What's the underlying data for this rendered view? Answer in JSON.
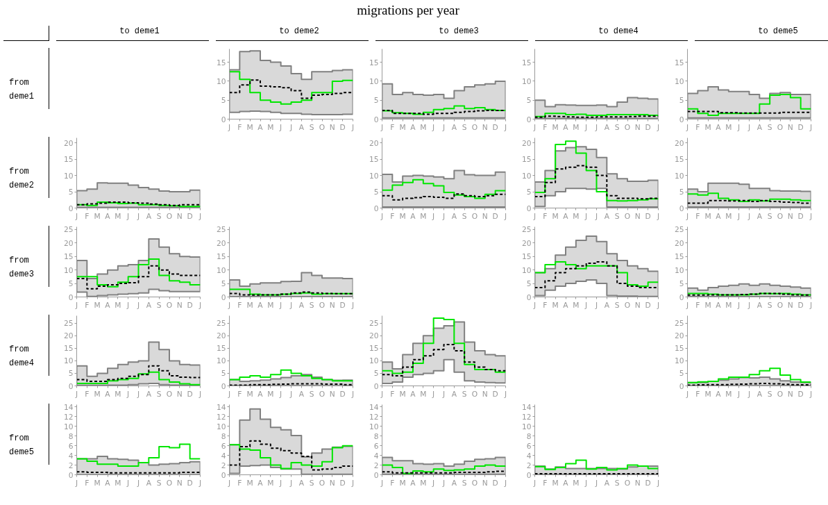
{
  "chart_data": [
    {
      "type": "other",
      "title": "migrations per year",
      "annotations": [
        "to deme1",
        "to deme2",
        "to deme3",
        "to deme4",
        "to deme5",
        "from deme1",
        "from deme2",
        "from deme3",
        "from deme4",
        "from deme5"
      ]
    },
    {
      "type": "step",
      "categories": [
        "J",
        "F",
        "M",
        "A",
        "M",
        "J",
        "J",
        "A",
        "S",
        "O",
        "N",
        "D",
        "J"
      ],
      "ylim": [
        0,
        18.5
      ],
      "yticks": [
        0,
        5,
        10,
        15
      ],
      "series": [
        {
          "color": "#00e600",
          "values": [
            12.5,
            10.5,
            7,
            5,
            4.5,
            4,
            4.5,
            5,
            7,
            7,
            10,
            10.2,
            10.2
          ]
        },
        {
          "color": "#000000",
          "line_style": "dashed",
          "values": [
            7,
            9,
            10.3,
            8.7,
            8.5,
            8.3,
            7.5,
            5.5,
            6.3,
            6.5,
            6.8,
            7,
            7
          ],
          "lower": [
            1.8,
            2,
            2.1,
            2,
            1.8,
            1.5,
            1.5,
            1.3,
            1.2,
            1.2,
            1.2,
            1.3,
            1.3
          ],
          "upper": [
            13,
            17.8,
            18,
            15.5,
            15,
            14,
            12,
            10.5,
            12.5,
            12.5,
            12.8,
            13,
            13
          ]
        }
      ]
    },
    {
      "type": "step",
      "categories": [
        "J",
        "F",
        "M",
        "A",
        "M",
        "J",
        "J",
        "A",
        "S",
        "O",
        "N",
        "D",
        "J"
      ],
      "ylim": [
        0,
        18.5
      ],
      "yticks": [
        0,
        5,
        10,
        15
      ],
      "series": [
        {
          "color": "#00e600",
          "values": [
            2.2,
            1.7,
            1.5,
            1.3,
            1.8,
            2.5,
            2.8,
            3.5,
            2.8,
            3,
            2.5,
            2.3,
            2.3
          ]
        },
        {
          "color": "#000000",
          "line_style": "dashed",
          "values": [
            2.3,
            1.5,
            1.5,
            1.5,
            1.3,
            1.5,
            1.5,
            1.8,
            2,
            2.2,
            2.3,
            2.3,
            2.3
          ],
          "lower": [
            0.3,
            0.3,
            0.3,
            0.3,
            0.3,
            0.3,
            0.3,
            0.3,
            0.3,
            0.3,
            0.3,
            0.3,
            0.3
          ],
          "upper": [
            9.3,
            6.5,
            7,
            6.5,
            6.3,
            6.5,
            5.5,
            7.5,
            8.5,
            9,
            9.3,
            10,
            10
          ]
        }
      ]
    },
    {
      "type": "step",
      "categories": [
        "J",
        "F",
        "M",
        "A",
        "M",
        "J",
        "J",
        "A",
        "S",
        "O",
        "N",
        "D",
        "J"
      ],
      "ylim": [
        0,
        18.5
      ],
      "yticks": [
        0,
        5,
        10,
        15
      ],
      "series": [
        {
          "color": "#00e600",
          "values": [
            0.7,
            1.5,
            1.5,
            1.2,
            1.3,
            1,
            1,
            1.2,
            1.2,
            1.2,
            1.2,
            1,
            1
          ]
        },
        {
          "color": "#000000",
          "line_style": "dashed",
          "values": [
            0.5,
            0.8,
            0.7,
            0.6,
            0.5,
            0.5,
            0.6,
            0.6,
            0.6,
            0.7,
            0.8,
            0.8,
            0.8
          ],
          "lower": [
            0.2,
            0.2,
            0.2,
            0.2,
            0.2,
            0.2,
            0.2,
            0.2,
            0.2,
            0.2,
            0.2,
            0.2,
            0.2
          ],
          "upper": [
            5,
            3.3,
            3.8,
            3.7,
            3.6,
            3.6,
            3.7,
            3.3,
            4.5,
            5.7,
            5.5,
            5.3,
            5.3
          ]
        }
      ]
    },
    {
      "type": "step",
      "categories": [
        "J",
        "F",
        "M",
        "A",
        "M",
        "J",
        "J",
        "A",
        "S",
        "O",
        "N",
        "D",
        "J"
      ],
      "ylim": [
        0,
        18.5
      ],
      "yticks": [
        0,
        5,
        10,
        15
      ],
      "series": [
        {
          "color": "#00e600",
          "values": [
            2.7,
            1.5,
            1,
            1.5,
            1.5,
            1.5,
            1.5,
            4,
            6.3,
            6.5,
            5.7,
            2.7,
            2.7
          ]
        },
        {
          "color": "#000000",
          "line_style": "dashed",
          "values": [
            2,
            2,
            2,
            1.7,
            1.7,
            1.6,
            1.6,
            1.6,
            1.6,
            1.8,
            1.8,
            1.8,
            1.8
          ],
          "lower": [
            0.3,
            0.3,
            0.3,
            0.3,
            0.3,
            0.3,
            0.3,
            0.3,
            0.3,
            0.3,
            0.3,
            0.3,
            0.3
          ],
          "upper": [
            6.8,
            7.5,
            8.5,
            7.7,
            7.3,
            7.3,
            6.5,
            5.5,
            6.8,
            7,
            6.5,
            6.5,
            6.5
          ]
        }
      ]
    },
    {
      "type": "step",
      "categories": [
        "J",
        "F",
        "M",
        "A",
        "M",
        "J",
        "J",
        "A",
        "S",
        "O",
        "N",
        "D",
        "J"
      ],
      "ylim": [
        0,
        21.5
      ],
      "yticks": [
        0,
        5,
        10,
        15,
        20
      ],
      "series": [
        {
          "color": "#00e600",
          "values": [
            1,
            0.8,
            1.8,
            1.6,
            1.4,
            1.5,
            1,
            1,
            0.8,
            0.7,
            0.5,
            0.5,
            0.5
          ]
        },
        {
          "color": "#000000",
          "line_style": "dashed",
          "values": [
            1,
            1.3,
            1.5,
            1.8,
            1.8,
            1.6,
            1.5,
            1.2,
            1,
            0.8,
            1,
            1,
            1
          ],
          "lower": [
            0.2,
            0.2,
            0.2,
            0.2,
            0.2,
            0.2,
            0.2,
            0.2,
            0.2,
            0.2,
            0.2,
            0.2,
            0.2
          ],
          "upper": [
            5.3,
            5.8,
            7.7,
            7.6,
            7.6,
            7,
            6.3,
            5.8,
            5.2,
            5,
            5,
            5.5,
            5.5
          ]
        }
      ]
    },
    {
      "type": "step",
      "categories": [
        "J",
        "F",
        "M",
        "A",
        "M",
        "J",
        "J",
        "A",
        "S",
        "O",
        "N",
        "D",
        "J"
      ],
      "ylim": [
        0,
        21.5
      ],
      "yticks": [
        0,
        5,
        10,
        15,
        20
      ],
      "series": [
        {
          "color": "#00e600",
          "values": [
            5.5,
            7,
            7.8,
            8.7,
            7.5,
            6.8,
            4.8,
            4,
            3.5,
            3,
            4.2,
            5.3,
            5.3
          ]
        },
        {
          "color": "#000000",
          "line_style": "dashed",
          "values": [
            3.8,
            2.5,
            3,
            3.2,
            3.5,
            3.3,
            3,
            4.3,
            3.8,
            3.5,
            3.8,
            4.2,
            4.2
          ],
          "lower": [
            0.3,
            0.3,
            0.3,
            0.3,
            0.3,
            0.3,
            0.3,
            0.3,
            0.3,
            0.3,
            0.3,
            0.3,
            0.3
          ],
          "upper": [
            10.3,
            8,
            9.8,
            10,
            9.8,
            9.5,
            9,
            11.5,
            10.2,
            10,
            10,
            11,
            11
          ]
        }
      ]
    },
    {
      "type": "step",
      "categories": [
        "J",
        "F",
        "M",
        "A",
        "M",
        "J",
        "J",
        "A",
        "S",
        "O",
        "N",
        "D",
        "J"
      ],
      "ylim": [
        0,
        21.5
      ],
      "yticks": [
        0,
        5,
        10,
        15,
        20
      ],
      "series": [
        {
          "color": "#00e600",
          "values": [
            4.8,
            9,
            19.5,
            20.5,
            16.8,
            11.5,
            5,
            2.3,
            2.2,
            2.3,
            2.5,
            2.8,
            2.8
          ]
        },
        {
          "color": "#000000",
          "line_style": "dashed",
          "values": [
            3.5,
            7.8,
            12,
            12.5,
            13,
            12.5,
            10,
            3.8,
            3,
            3,
            2.8,
            3,
            3
          ],
          "lower": [
            0.5,
            3.8,
            5,
            6,
            6,
            5.8,
            6,
            0.3,
            0.3,
            0.3,
            0.3,
            0.3,
            0.3
          ],
          "upper": [
            8,
            11.5,
            17.5,
            18.5,
            18.8,
            18,
            15.5,
            10.5,
            9,
            8.2,
            8.2,
            8.5,
            8.5
          ]
        }
      ]
    },
    {
      "type": "step",
      "categories": [
        "J",
        "F",
        "M",
        "A",
        "M",
        "J",
        "J",
        "A",
        "S",
        "O",
        "N",
        "D",
        "J"
      ],
      "ylim": [
        0,
        21.5
      ],
      "yticks": [
        0,
        5,
        10,
        15,
        20
      ],
      "series": [
        {
          "color": "#00e600",
          "values": [
            4.3,
            4,
            4.5,
            3,
            2.5,
            2,
            2.5,
            2.2,
            2.7,
            2.7,
            2.5,
            2.3,
            2.3
          ]
        },
        {
          "color": "#000000",
          "line_style": "dashed",
          "values": [
            1.5,
            1.5,
            2.3,
            2.3,
            2.2,
            2.3,
            2,
            2.3,
            2,
            1.8,
            1.7,
            1.5,
            1.5
          ],
          "lower": [
            0.3,
            0.3,
            0.3,
            0.3,
            0.3,
            0.3,
            0.3,
            0.3,
            0.3,
            0.3,
            0.3,
            0.3,
            0.3
          ],
          "upper": [
            5.8,
            5,
            7.6,
            7.6,
            7.6,
            7.3,
            6,
            6,
            5.3,
            5.2,
            5.2,
            5.1,
            5.1
          ]
        }
      ]
    },
    {
      "type": "step",
      "categories": [
        "J",
        "F",
        "M",
        "A",
        "M",
        "J",
        "J",
        "A",
        "S",
        "O",
        "N",
        "D",
        "J"
      ],
      "ylim": [
        0,
        26
      ],
      "yticks": [
        0,
        5,
        10,
        15,
        20,
        25
      ],
      "series": [
        {
          "color": "#00e600",
          "values": [
            7.5,
            7.5,
            4.5,
            3.8,
            5.5,
            7.5,
            12,
            14,
            8,
            6,
            5.5,
            4.5,
            4.5
          ]
        },
        {
          "color": "#000000",
          "line_style": "dashed",
          "values": [
            6.8,
            3,
            4,
            4.5,
            5,
            5.3,
            7.5,
            11.5,
            10,
            8.5,
            8,
            8,
            8
          ],
          "lower": [
            1.8,
            0.2,
            0.5,
            0.8,
            1,
            1.2,
            1.5,
            2.8,
            2.3,
            2,
            2,
            2,
            2
          ],
          "upper": [
            13.5,
            6.8,
            8.5,
            10,
            11.5,
            12,
            13.5,
            21.5,
            18.5,
            16,
            15,
            14.8,
            14.8
          ]
        }
      ]
    },
    {
      "type": "step",
      "categories": [
        "J",
        "F",
        "M",
        "A",
        "M",
        "J",
        "J",
        "A",
        "S",
        "O",
        "N",
        "D",
        "J"
      ],
      "ylim": [
        0,
        26
      ],
      "yticks": [
        0,
        5,
        10,
        15,
        20,
        25
      ],
      "series": [
        {
          "color": "#00e600",
          "values": [
            2.8,
            2.8,
            1,
            0.8,
            0.8,
            1,
            1.3,
            1.5,
            1,
            1.2,
            1.2,
            1.2,
            1.2
          ]
        },
        {
          "color": "#000000",
          "line_style": "dashed",
          "values": [
            1.3,
            0.8,
            0.7,
            0.8,
            0.8,
            1,
            1.5,
            1.8,
            1.5,
            1.3,
            1.2,
            1.2,
            1.2
          ],
          "lower": [
            0.1,
            0.1,
            0.1,
            0.1,
            0.1,
            0.1,
            0.1,
            0.1,
            0.1,
            0.1,
            0.1,
            0.1,
            0.1
          ],
          "upper": [
            6.3,
            4,
            4.8,
            5.2,
            5.2,
            5.7,
            5.8,
            9,
            8,
            7,
            7,
            6.8,
            6.8
          ]
        }
      ]
    },
    {
      "type": "step",
      "categories": [
        "J",
        "F",
        "M",
        "A",
        "M",
        "J",
        "J",
        "A",
        "S",
        "O",
        "N",
        "D",
        "J"
      ],
      "ylim": [
        0,
        26
      ],
      "yticks": [
        0,
        5,
        10,
        15,
        20,
        25
      ],
      "series": [
        {
          "color": "#00e600",
          "values": [
            9,
            12,
            13,
            12,
            10.5,
            11.5,
            11.5,
            11.5,
            9,
            4.5,
            4,
            5.5,
            5.5
          ]
        },
        {
          "color": "#000000",
          "line_style": "dashed",
          "values": [
            3.5,
            6,
            9,
            10.5,
            11.5,
            12.5,
            13,
            11.5,
            5,
            4,
            3.5,
            3.5,
            3.5
          ],
          "lower": [
            0.5,
            2.5,
            4,
            5,
            5.8,
            6.3,
            5,
            0.5,
            0.3,
            0.3,
            0.2,
            0.2,
            0.2
          ],
          "upper": [
            9,
            10.5,
            15.5,
            18.5,
            21,
            22.5,
            20.5,
            16,
            13.5,
            11.5,
            10.5,
            9.5,
            9.5
          ]
        }
      ]
    },
    {
      "type": "step",
      "categories": [
        "J",
        "F",
        "M",
        "A",
        "M",
        "J",
        "J",
        "A",
        "S",
        "O",
        "N",
        "D",
        "J"
      ],
      "ylim": [
        0,
        26
      ],
      "yticks": [
        0,
        5,
        10,
        15,
        20,
        25
      ],
      "series": [
        {
          "color": "#00e600",
          "values": [
            1.3,
            1.3,
            1,
            0.8,
            0.8,
            0.8,
            1,
            1.3,
            1.2,
            1.3,
            1,
            0.8,
            0.8
          ]
        },
        {
          "color": "#000000",
          "line_style": "dashed",
          "values": [
            0.7,
            0.7,
            0.8,
            0.8,
            0.8,
            0.9,
            1,
            1.3,
            1.3,
            1,
            0.8,
            0.7,
            0.7
          ],
          "lower": [
            0.1,
            0.1,
            0.1,
            0.1,
            0.1,
            0.1,
            0.1,
            0.1,
            0.1,
            0.1,
            0.1,
            0.1,
            0.1
          ],
          "upper": [
            3.3,
            2.5,
            3.5,
            4,
            4.3,
            4.8,
            4.3,
            4.8,
            4.3,
            4,
            3.7,
            3.3,
            3.3
          ]
        }
      ]
    },
    {
      "type": "step",
      "categories": [
        "J",
        "F",
        "M",
        "A",
        "M",
        "J",
        "J",
        "A",
        "S",
        "O",
        "N",
        "D",
        "J"
      ],
      "ylim": [
        0,
        28
      ],
      "yticks": [
        0,
        5,
        10,
        15,
        20,
        25
      ],
      "series": [
        {
          "color": "#00e600",
          "values": [
            1,
            1,
            1,
            2,
            2.5,
            3,
            4.8,
            5.5,
            2.5,
            1.5,
            0.8,
            0.5,
            0.5
          ]
        },
        {
          "color": "#000000",
          "line_style": "dashed",
          "values": [
            2.5,
            1.8,
            1.8,
            2.5,
            3,
            3.8,
            4.5,
            8,
            6,
            4,
            3.5,
            3.3,
            3.3
          ],
          "lower": [
            0.2,
            0.2,
            0.2,
            0.3,
            0.3,
            0.5,
            0.8,
            1,
            0.5,
            0.3,
            0.3,
            0.3,
            0.3
          ],
          "upper": [
            8,
            3.8,
            5,
            7,
            8.5,
            9.5,
            10,
            17.5,
            14.5,
            10,
            8.5,
            8.3,
            8.3
          ]
        }
      ]
    },
    {
      "type": "step",
      "categories": [
        "J",
        "F",
        "M",
        "A",
        "M",
        "J",
        "J",
        "A",
        "S",
        "O",
        "N",
        "D",
        "J"
      ],
      "ylim": [
        0,
        28
      ],
      "yticks": [
        0,
        5,
        10,
        15,
        20,
        25
      ],
      "series": [
        {
          "color": "#00e600",
          "values": [
            2.5,
            3.5,
            4,
            3.5,
            4.5,
            6.3,
            5,
            4,
            3,
            2.5,
            2,
            2,
            2
          ]
        },
        {
          "color": "#000000",
          "line_style": "dashed",
          "values": [
            0.3,
            0.3,
            0.5,
            0.5,
            0.6,
            0.7,
            0.8,
            0.8,
            0.8,
            0.7,
            0.7,
            0.5,
            0.5
          ],
          "lower": [
            0.1,
            0.1,
            0.1,
            0.1,
            0.1,
            0.1,
            0.1,
            0.1,
            0.1,
            0.1,
            0.1,
            0.1,
            0.1
          ],
          "upper": [
            2.5,
            1.8,
            2,
            2.3,
            2.8,
            3.3,
            4,
            4.5,
            3.5,
            2.5,
            2.2,
            2.3,
            2.3
          ]
        }
      ]
    },
    {
      "type": "step",
      "categories": [
        "J",
        "F",
        "M",
        "A",
        "M",
        "J",
        "J",
        "A",
        "S",
        "O",
        "N",
        "D",
        "J"
      ],
      "ylim": [
        0,
        28
      ],
      "yticks": [
        0,
        5,
        10,
        15,
        20,
        25
      ],
      "series": [
        {
          "color": "#00e600",
          "values": [
            6,
            5,
            5.5,
            9,
            17,
            27,
            26.5,
            17,
            8.5,
            6.5,
            6.5,
            5.5,
            5.5
          ]
        },
        {
          "color": "#000000",
          "line_style": "dashed",
          "values": [
            4.5,
            4,
            7.5,
            10.5,
            12,
            14.5,
            16.5,
            14,
            9.5,
            7.5,
            6.5,
            6,
            6
          ],
          "lower": [
            1,
            1.5,
            3.5,
            4.5,
            5,
            6,
            10.5,
            5.5,
            2,
            1.5,
            1.3,
            1.2,
            1.2
          ],
          "upper": [
            9.5,
            6.8,
            12.5,
            17,
            20,
            23,
            24,
            25.5,
            17.5,
            14,
            12.5,
            12,
            12
          ]
        }
      ]
    },
    {
      "type": "step",
      "categories": [
        "J",
        "F",
        "M",
        "A",
        "M",
        "J",
        "J",
        "A",
        "S",
        "O",
        "N",
        "D",
        "J"
      ],
      "ylim": [
        0,
        28
      ],
      "yticks": [
        0,
        5,
        10,
        15,
        20,
        25
      ],
      "series": [
        {
          "color": "#00e600",
          "values": [
            1.3,
            1.6,
            1.8,
            2.8,
            3.5,
            3.5,
            4.5,
            6,
            7,
            4.3,
            2.5,
            1.5,
            1.5
          ]
        },
        {
          "color": "#000000",
          "line_style": "dashed",
          "values": [
            0.3,
            0.4,
            0.5,
            0.5,
            0.6,
            0.7,
            0.8,
            1,
            0.8,
            0.6,
            0.5,
            0.4,
            0.4
          ],
          "lower": [
            0.1,
            0.1,
            0.1,
            0.1,
            0.1,
            0.1,
            0.1,
            0.1,
            0.1,
            0.1,
            0.1,
            0.1,
            0.1
          ],
          "upper": [
            1.3,
            1.3,
            1.8,
            2.3,
            2.8,
            3.3,
            3.2,
            3.5,
            2.8,
            2,
            1.5,
            1.3,
            1.3
          ]
        }
      ]
    },
    {
      "type": "step",
      "categories": [
        "J",
        "F",
        "M",
        "A",
        "M",
        "J",
        "J",
        "A",
        "S",
        "O",
        "N",
        "D",
        "J"
      ],
      "ylim": [
        0,
        14.5
      ],
      "yticks": [
        0,
        2,
        4,
        6,
        8,
        10,
        12,
        14
      ],
      "series": [
        {
          "color": "#00e600",
          "values": [
            3.3,
            2.8,
            2.2,
            2.2,
            1.8,
            1.8,
            2.5,
            3.5,
            5.8,
            5.6,
            6.3,
            3.3,
            3.3
          ]
        },
        {
          "color": "#000000",
          "line_style": "dashed",
          "values": [
            0.6,
            0.5,
            0.5,
            0.4,
            0.4,
            0.4,
            0.4,
            0.4,
            0.4,
            0.4,
            0.5,
            0.5,
            0.5
          ],
          "lower": [
            0.05,
            0.05,
            0.05,
            0.05,
            0.05,
            0.05,
            0.05,
            0.05,
            0.05,
            0.05,
            0.05,
            0.05,
            0.05
          ],
          "upper": [
            3.3,
            3.3,
            3.8,
            3.3,
            3.2,
            3,
            2.5,
            2,
            2.2,
            2.3,
            2.5,
            2.7,
            2.7
          ]
        }
      ]
    },
    {
      "type": "step",
      "categories": [
        "J",
        "F",
        "M",
        "A",
        "M",
        "J",
        "J",
        "A",
        "S",
        "O",
        "N",
        "D",
        "J"
      ],
      "ylim": [
        0,
        14.5
      ],
      "yticks": [
        0,
        2,
        4,
        6,
        8,
        10,
        12,
        14
      ],
      "series": [
        {
          "color": "#00e600",
          "values": [
            6.2,
            5.3,
            5.1,
            3.5,
            2,
            1.3,
            2.5,
            2,
            1.8,
            2.7,
            5.6,
            6,
            6
          ]
        },
        {
          "color": "#000000",
          "line_style": "dashed",
          "values": [
            2,
            5.8,
            7,
            6.3,
            5.5,
            5,
            4.5,
            3.8,
            1,
            1.2,
            1.5,
            1.8,
            1.8
          ],
          "lower": [
            0.3,
            1.8,
            1.9,
            2,
            1.5,
            1.2,
            1.2,
            0.1,
            0.1,
            0.1,
            0.1,
            0.1,
            0.1
          ],
          "upper": [
            6.2,
            11.3,
            13.6,
            11.5,
            9.8,
            9.3,
            8.1,
            3.7,
            4.5,
            5.3,
            5.7,
            5.9,
            5.9
          ]
        }
      ]
    },
    {
      "type": "step",
      "categories": [
        "J",
        "F",
        "M",
        "A",
        "M",
        "J",
        "J",
        "A",
        "S",
        "O",
        "N",
        "D",
        "J"
      ],
      "ylim": [
        0,
        14.5
      ],
      "yticks": [
        0,
        2,
        4,
        6,
        8,
        10,
        12,
        14
      ],
      "series": [
        {
          "color": "#00e600",
          "values": [
            2,
            1.5,
            0.3,
            0.8,
            0.6,
            1.2,
            0.9,
            1,
            1.2,
            1.8,
            2,
            1.8,
            1.8
          ]
        },
        {
          "color": "#000000",
          "line_style": "dashed",
          "values": [
            0.6,
            0.4,
            0.4,
            0.4,
            0.4,
            0.4,
            0.4,
            0.5,
            0.5,
            0.5,
            0.6,
            0.7,
            0.7
          ],
          "lower": [
            0.1,
            0.1,
            0.1,
            0.1,
            0.1,
            0.1,
            0.1,
            0.1,
            0.1,
            0.1,
            0.1,
            0.1,
            0.1
          ],
          "upper": [
            3.6,
            2.9,
            2.9,
            2.3,
            2.2,
            2.3,
            1.8,
            2.2,
            2.8,
            3.2,
            3.3,
            3.6,
            3.6
          ]
        }
      ]
    },
    {
      "type": "step",
      "categories": [
        "J",
        "F",
        "M",
        "A",
        "M",
        "J",
        "J",
        "A",
        "S",
        "O",
        "N",
        "D",
        "J"
      ],
      "ylim": [
        0,
        14.5
      ],
      "yticks": [
        0,
        2,
        4,
        6,
        8,
        10,
        12,
        14
      ],
      "series": [
        {
          "color": "#00e600",
          "values": [
            1.7,
            1.1,
            1.5,
            2.3,
            3,
            1.2,
            1.5,
            1,
            1.3,
            2,
            1.8,
            1.3,
            1.3
          ]
        },
        {
          "color": "#000000",
          "line_style": "dashed",
          "values": [
            0.2,
            0.2,
            0.2,
            0.2,
            0.2,
            0.2,
            0.2,
            0.2,
            0.2,
            0.2,
            0.2,
            0.2,
            0.2
          ],
          "lower": [
            0.05,
            0.05,
            0.05,
            0.05,
            0.05,
            0.05,
            0.05,
            0.05,
            0.05,
            0.05,
            0.05,
            0.05,
            0.05
          ],
          "upper": [
            1.8,
            1.2,
            1.6,
            1.3,
            1.3,
            1.3,
            1.3,
            1.3,
            1.2,
            1.6,
            1.8,
            1.8,
            1.8
          ]
        }
      ]
    }
  ]
}
